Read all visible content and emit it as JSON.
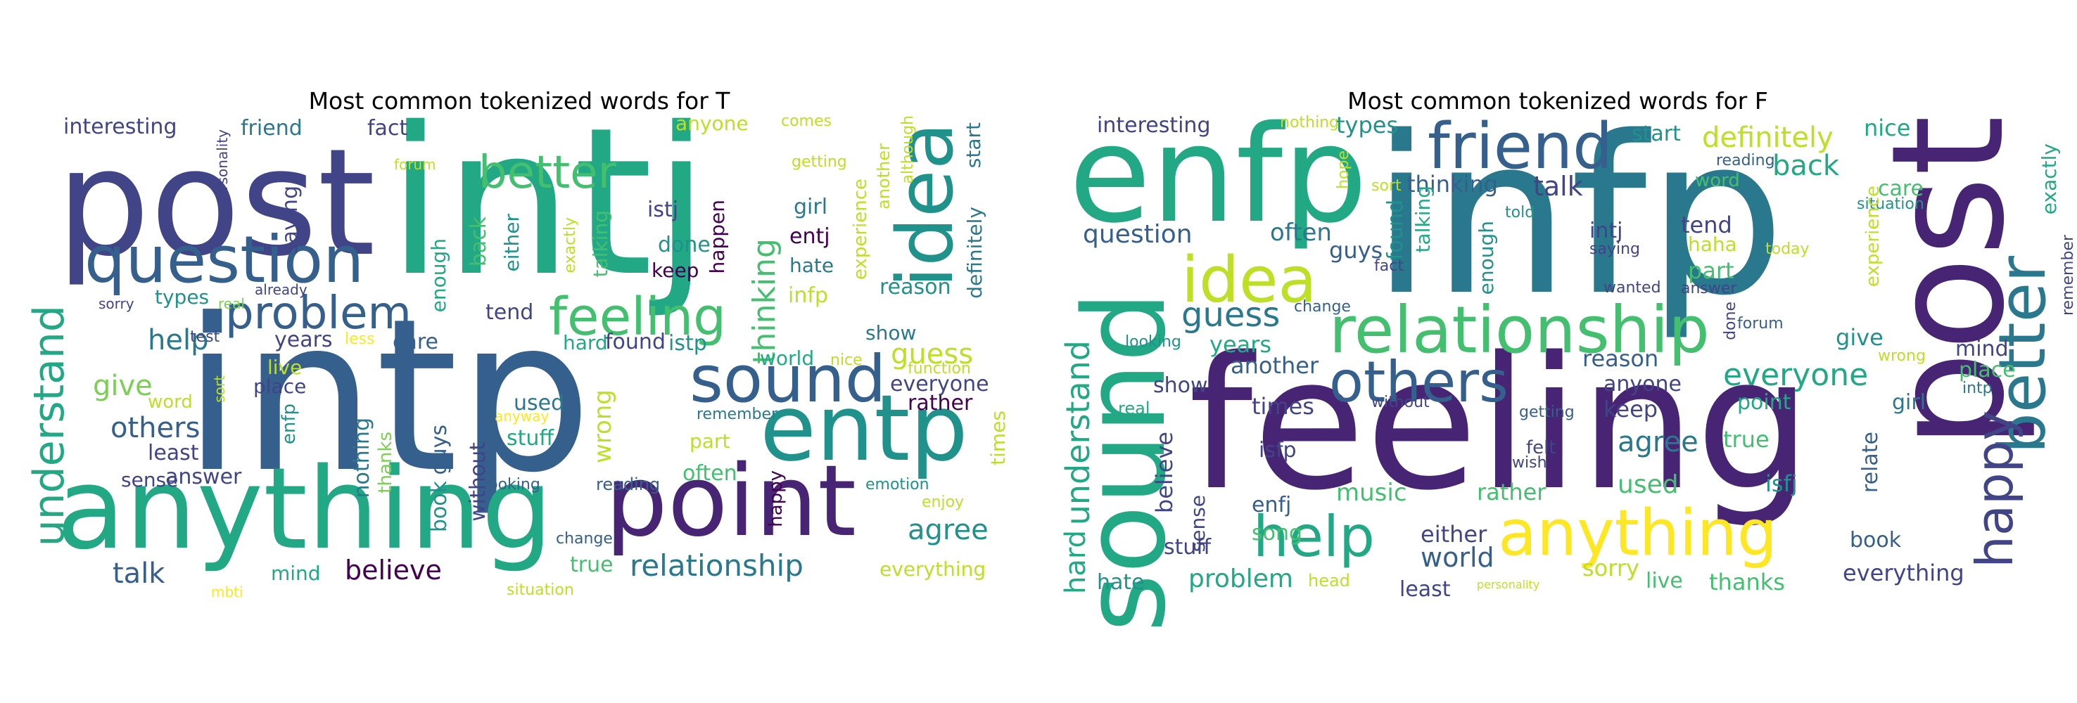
{
  "panels": [
    {
      "title": "Most common tokenized words for T",
      "words": [
        "intj",
        "intp",
        "post",
        "anything",
        "point",
        "idea",
        "entp",
        "question",
        "problem",
        "sound",
        "feeling",
        "better",
        "understand",
        "relationship",
        "talk",
        "believe",
        "agree",
        "thinking",
        "others",
        "give",
        "help",
        "guess",
        "interesting",
        "friend",
        "fact",
        "anyone",
        "comes",
        "getting",
        "experience",
        "another",
        "although",
        "start",
        "definitely",
        "personality",
        "forum",
        "saying",
        "back",
        "either",
        "enough",
        "exactly",
        "talking",
        "istj",
        "girl",
        "happen",
        "entj",
        "done",
        "keep",
        "hate",
        "infp",
        "reason",
        "show",
        "sorry",
        "types",
        "already",
        "real",
        "test",
        "less",
        "tend",
        "care",
        "hard",
        "found",
        "istp",
        "world",
        "nice",
        "function",
        "live",
        "place",
        "years",
        "word",
        "sort",
        "enfp",
        "least",
        "sense",
        "answer",
        "nothing",
        "thanks",
        "anyway",
        "used",
        "stuff",
        "guys",
        "wrong",
        "remember",
        "part",
        "rather",
        "everyone",
        "often",
        "times",
        "book",
        "without",
        "looking",
        "reading",
        "emotion",
        "happy",
        "enjoy",
        "change",
        "true",
        "mind",
        "mbti",
        "situation",
        "everything"
      ]
    },
    {
      "title": "Most common tokenized words for F",
      "words": [
        "infp",
        "feeling",
        "enfp",
        "post",
        "sound",
        "idea",
        "relationship",
        "friend",
        "anything",
        "others",
        "help",
        "better",
        "happy",
        "understand",
        "hard",
        "interesting",
        "nothing",
        "types",
        "start",
        "definitely",
        "nice",
        "hope",
        "sort",
        "thinking",
        "talk",
        "back",
        "reading",
        "word",
        "care",
        "situation",
        "exactly",
        "question",
        "often",
        "guys",
        "fact",
        "found",
        "talking",
        "enough",
        "told",
        "intj",
        "saying",
        "tend",
        "haha",
        "today",
        "wanted",
        "part",
        "answer",
        "experience",
        "remember",
        "guess",
        "change",
        "years",
        "looking",
        "forum",
        "done",
        "give",
        "wrong",
        "mind",
        "place",
        "intp",
        "show",
        "another",
        "times",
        "reason",
        "anyone",
        "everyone",
        "real",
        "without",
        "getting",
        "keep",
        "point",
        "girl",
        "isfp",
        "felt",
        "wish",
        "agree",
        "true",
        "relate",
        "believe",
        "sense",
        "enfj",
        "song",
        "music",
        "rather",
        "used",
        "isfj",
        "either",
        "world",
        "stuff",
        "least",
        "sorry",
        "personality",
        "live",
        "thanks",
        "book",
        "everything",
        "hate",
        "head",
        "problem"
      ]
    }
  ],
  "colors": {
    "dark_purple": "#440154",
    "indigo": "#482475",
    "blue_purple": "#414487",
    "slate_blue": "#355f8d",
    "teal_blue": "#2a788e",
    "teal": "#21918c",
    "green_teal": "#22a884",
    "green": "#44bf70",
    "light_green": "#7ad151",
    "lime": "#bddf26",
    "yellow": "#fde725"
  }
}
